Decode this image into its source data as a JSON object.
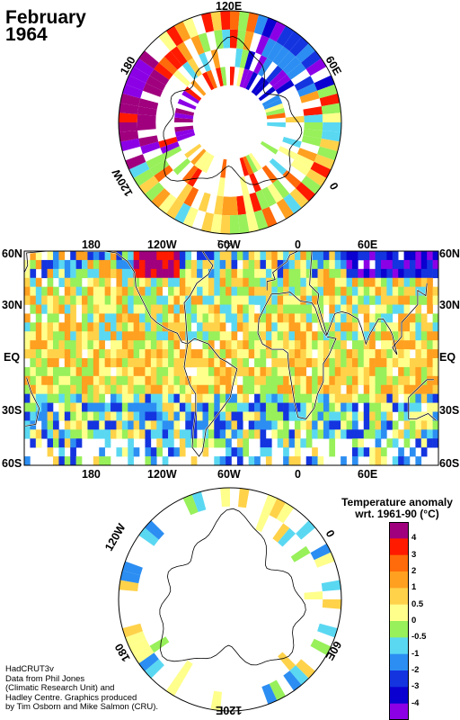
{
  "title": {
    "line1": "February",
    "line2": "1964"
  },
  "north_polar_labels": {
    "top": "120E",
    "right": "60E",
    "left": "180",
    "lower_left": "120W",
    "lower_right": "0"
  },
  "south_polar_labels": {
    "upper_left": "120W",
    "upper_right": "0",
    "lower_left": "180",
    "lower_right": "60E",
    "bottom": "120E"
  },
  "map_lon_labels": [
    "180",
    "120W",
    "60W",
    "0",
    "60E"
  ],
  "map_lat_labels": [
    "60N",
    "30N",
    "EQ",
    "30S",
    "60S"
  ],
  "legend": {
    "title_line1": "Temperature anomaly",
    "title_line2": "wrt. 1961-90  (°C)",
    "labels": [
      "4",
      "3",
      "2",
      "1",
      "0.5",
      "0",
      "-0.5",
      "-1",
      "-2",
      "-3",
      "-4"
    ],
    "colors": [
      "#a0007e",
      "#ff1a00",
      "#ff6a0a",
      "#ffa020",
      "#ffd24a",
      "#ffff8c",
      "#98f05a",
      "#5ad8f2",
      "#2c8ef2",
      "#1434e0",
      "#0a00d0",
      "#8c00e6"
    ]
  },
  "credits": [
    "HadCRUT3v",
    "Data from Phil Jones",
    "(Climatic Research Unit) and",
    "Hadley Centre.  Graphics produced",
    "by Tim Osborn and Mike Salmon (CRU)."
  ]
}
